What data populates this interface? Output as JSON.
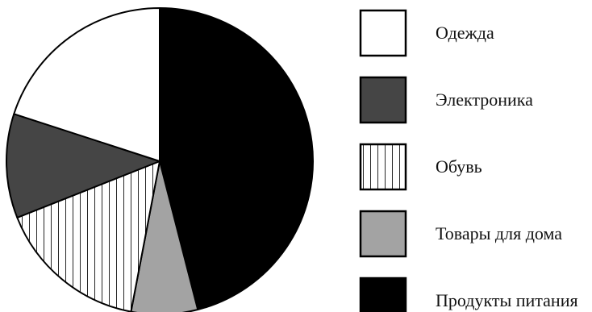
{
  "chart_data": {
    "type": "pie",
    "legend_position": "right",
    "slices": [
      {
        "label": "Одежда",
        "value": 20,
        "fill": "white",
        "color": "#ffffff"
      },
      {
        "label": "Электроника",
        "value": 11,
        "fill": "solid",
        "color": "#454545"
      },
      {
        "label": "Обувь",
        "value": 16,
        "fill": "vertical-hatch",
        "color": "#ffffff"
      },
      {
        "label": "Товары для дома",
        "value": 7,
        "fill": "solid",
        "color": "#a3a3a3"
      },
      {
        "label": "Продукты питания",
        "value": 46,
        "fill": "solid",
        "color": "#000000"
      }
    ],
    "start_angle_deg": 0,
    "direction": "clockwise",
    "drawing_order": [
      "Продукты питания",
      "Товары для дома",
      "Обувь",
      "Электроника",
      "Одежда"
    ]
  }
}
